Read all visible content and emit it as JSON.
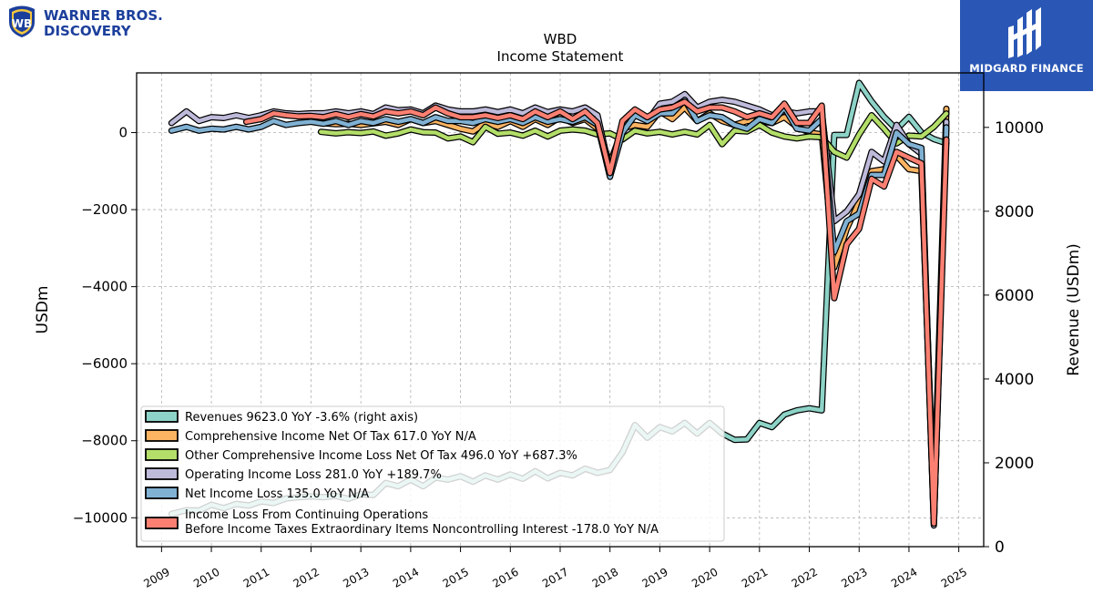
{
  "header": {
    "left_logo": {
      "line1": "WARNER BROS.",
      "line2": "DISCOVERY",
      "icon": "wb-shield-icon",
      "color": "#1c3f9c"
    },
    "right_logo": {
      "text": "MIDGARD FINANCE",
      "icon": "midgard-finance-icon",
      "background": "#2a57b5"
    }
  },
  "chart_data": {
    "type": "line",
    "title": "WBD",
    "subtitle": "Income Statement",
    "ylabel": "USDm",
    "ylabel_right": "Revenue (USDm)",
    "ylim": [
      -10750,
      1550
    ],
    "ylim_right": [
      0,
      11300
    ],
    "xlim": [
      2008.5,
      2025.5
    ],
    "yticks": [
      0,
      -2000,
      -4000,
      -6000,
      -8000,
      -10000
    ],
    "yticks_right": [
      0,
      2000,
      4000,
      6000,
      8000,
      10000
    ],
    "xticks": [
      2009,
      2010,
      2011,
      2012,
      2013,
      2014,
      2015,
      2016,
      2017,
      2018,
      2019,
      2020,
      2021,
      2022,
      2023,
      2024,
      2025
    ],
    "grid": true,
    "legend_position": "lower-left",
    "series": [
      {
        "name": "Revenues  9623.0 YoY -3.6% (right axis)",
        "color": "#8dd3c7",
        "axis": "right",
        "x": [
          2009.2,
          2009.5,
          2009.75,
          2010.0,
          2010.25,
          2010.5,
          2010.75,
          2011.0,
          2011.25,
          2011.5,
          2011.75,
          2012.0,
          2012.25,
          2012.5,
          2012.75,
          2013.0,
          2013.25,
          2013.5,
          2013.75,
          2014.0,
          2014.25,
          2014.5,
          2014.75,
          2015.0,
          2015.25,
          2015.5,
          2015.75,
          2016.0,
          2016.25,
          2016.5,
          2016.75,
          2017.0,
          2017.25,
          2017.5,
          2017.75,
          2018.0,
          2018.25,
          2018.5,
          2018.75,
          2019.0,
          2019.25,
          2019.5,
          2019.75,
          2020.0,
          2020.25,
          2020.5,
          2020.75,
          2021.0,
          2021.25,
          2021.5,
          2021.75,
          2022.0,
          2022.25,
          2022.5,
          2022.75,
          2023.0,
          2023.25,
          2023.5,
          2023.75,
          2024.0,
          2024.25,
          2024.5,
          2024.75
        ],
        "y": [
          780,
          870,
          860,
          1000,
          920,
          1020,
          980,
          1080,
          1040,
          1150,
          1180,
          1200,
          1180,
          1210,
          1140,
          1250,
          1230,
          1520,
          1440,
          1600,
          1440,
          1650,
          1600,
          1680,
          1550,
          1700,
          1600,
          1720,
          1620,
          1800,
          1630,
          1760,
          1700,
          1860,
          1760,
          1830,
          2250,
          2900,
          2600,
          2850,
          2750,
          2950,
          2700,
          2950,
          2700,
          2550,
          2560,
          2950,
          2850,
          3150,
          3250,
          3300,
          3250,
          9820,
          9820,
          11060,
          10620,
          10250,
          9950,
          10250,
          9880,
          9720,
          9623
        ]
      },
      {
        "name": "Comprehensive Income Net Of Tax  617.0 YoY N/A",
        "color": "#fdb462",
        "axis": "left",
        "x": [
          2012.2,
          2012.5,
          2012.75,
          2013.0,
          2013.25,
          2013.5,
          2013.75,
          2014.0,
          2014.25,
          2014.5,
          2014.75,
          2015.0,
          2015.25,
          2015.5,
          2015.75,
          2016.0,
          2016.25,
          2016.5,
          2016.75,
          2017.0,
          2017.25,
          2017.5,
          2017.75,
          2018.0,
          2018.25,
          2018.5,
          2018.75,
          2019.0,
          2019.25,
          2019.5,
          2019.75,
          2020.0,
          2020.25,
          2020.5,
          2020.75,
          2021.0,
          2021.25,
          2021.5,
          2021.75,
          2022.0,
          2022.25,
          2022.5,
          2022.75,
          2023.0,
          2023.25,
          2023.5,
          2023.75,
          2024.0,
          2024.25,
          2024.5,
          2024.75
        ],
        "y": [
          250,
          220,
          230,
          200,
          240,
          280,
          200,
          350,
          250,
          300,
          200,
          100,
          30,
          250,
          150,
          300,
          150,
          350,
          200,
          400,
          250,
          350,
          100,
          -800,
          100,
          200,
          150,
          550,
          350,
          650,
          300,
          500,
          300,
          200,
          300,
          300,
          250,
          400,
          150,
          0,
          -50,
          -3500,
          -2500,
          -1800,
          -1000,
          -950,
          -600,
          -950,
          -1000,
          -9700,
          617
        ]
      },
      {
        "name": "Other Comprehensive Income Loss Net Of Tax  496.0 YoY +687.3%",
        "color": "#b3de69",
        "axis": "left",
        "x": [
          2012.2,
          2012.5,
          2012.75,
          2013.0,
          2013.25,
          2013.5,
          2013.75,
          2014.0,
          2014.25,
          2014.5,
          2014.75,
          2015.0,
          2015.25,
          2015.5,
          2015.75,
          2016.0,
          2016.25,
          2016.5,
          2016.75,
          2017.0,
          2017.25,
          2017.5,
          2017.75,
          2018.0,
          2018.25,
          2018.5,
          2018.75,
          2019.0,
          2019.25,
          2019.5,
          2019.75,
          2020.0,
          2020.25,
          2020.5,
          2020.75,
          2021.0,
          2021.25,
          2021.5,
          2021.75,
          2022.0,
          2022.25,
          2022.5,
          2022.75,
          2023.0,
          2023.25,
          2023.5,
          2023.75,
          2024.0,
          2024.25,
          2024.5,
          2024.75
        ],
        "y": [
          20,
          -20,
          10,
          -10,
          30,
          -80,
          -20,
          80,
          10,
          0,
          -150,
          -100,
          -250,
          150,
          -30,
          0,
          -80,
          50,
          -100,
          50,
          80,
          50,
          -50,
          -20,
          -180,
          50,
          -20,
          20,
          -50,
          20,
          -50,
          200,
          -300,
          50,
          30,
          200,
          0,
          -100,
          -150,
          -100,
          -120,
          -500,
          -650,
          -50,
          450,
          100,
          -280,
          -80,
          -100,
          150,
          496
        ]
      },
      {
        "name": "Operating Income Loss  281.0 YoY +189.7%",
        "color": "#bebada",
        "axis": "left",
        "x": [
          2009.2,
          2009.5,
          2009.75,
          2010.0,
          2010.25,
          2010.5,
          2010.75,
          2011.0,
          2011.25,
          2011.5,
          2011.75,
          2012.0,
          2012.25,
          2012.5,
          2012.75,
          2013.0,
          2013.25,
          2013.5,
          2013.75,
          2014.0,
          2014.25,
          2014.5,
          2014.75,
          2015.0,
          2015.25,
          2015.5,
          2015.75,
          2016.0,
          2016.25,
          2016.5,
          2016.75,
          2017.0,
          2017.25,
          2017.5,
          2017.75,
          2018.0,
          2018.25,
          2018.5,
          2018.75,
          2019.0,
          2019.25,
          2019.5,
          2019.75,
          2020.0,
          2020.25,
          2020.5,
          2020.75,
          2021.0,
          2021.25,
          2021.5,
          2021.75,
          2022.0,
          2022.25,
          2022.5,
          2022.75,
          2023.0,
          2023.25,
          2023.5,
          2023.75,
          2024.0,
          2024.25,
          2024.5,
          2024.75
        ],
        "y": [
          250,
          550,
          300,
          400,
          380,
          450,
          380,
          450,
          550,
          500,
          480,
          500,
          500,
          550,
          500,
          550,
          480,
          650,
          580,
          600,
          500,
          700,
          600,
          550,
          550,
          600,
          530,
          600,
          500,
          650,
          530,
          600,
          550,
          650,
          450,
          -1000,
          100,
          500,
          300,
          750,
          800,
          1000,
          650,
          800,
          850,
          800,
          700,
          600,
          450,
          550,
          500,
          550,
          550,
          -2300,
          -2050,
          -1600,
          -500,
          -750,
          200,
          -300,
          -550,
          -10200,
          281
        ]
      },
      {
        "name": "Net Income Loss  135.0 YoY N/A",
        "color": "#80b1d3",
        "axis": "left",
        "x": [
          2009.2,
          2009.5,
          2009.75,
          2010.0,
          2010.25,
          2010.5,
          2010.75,
          2011.0,
          2011.25,
          2011.5,
          2011.75,
          2012.0,
          2012.25,
          2012.5,
          2012.75,
          2013.0,
          2013.25,
          2013.5,
          2013.75,
          2014.0,
          2014.25,
          2014.5,
          2014.75,
          2015.0,
          2015.25,
          2015.5,
          2015.75,
          2016.0,
          2016.25,
          2016.5,
          2016.75,
          2017.0,
          2017.25,
          2017.5,
          2017.75,
          2018.0,
          2018.25,
          2018.5,
          2018.75,
          2019.0,
          2019.25,
          2019.5,
          2019.75,
          2020.0,
          2020.25,
          2020.5,
          2020.75,
          2021.0,
          2021.25,
          2021.5,
          2021.75,
          2022.0,
          2022.25,
          2022.5,
          2022.75,
          2023.0,
          2023.25,
          2023.5,
          2023.75,
          2024.0,
          2024.25,
          2024.5,
          2024.75
        ],
        "y": [
          50,
          150,
          50,
          100,
          80,
          150,
          80,
          150,
          300,
          200,
          250,
          280,
          230,
          300,
          200,
          300,
          250,
          350,
          280,
          350,
          250,
          400,
          300,
          300,
          250,
          350,
          280,
          350,
          250,
          400,
          280,
          350,
          280,
          400,
          200,
          -1150,
          0,
          450,
          300,
          500,
          500,
          850,
          300,
          450,
          400,
          200,
          100,
          350,
          250,
          650,
          100,
          50,
          350,
          -3100,
          -2300,
          -2100,
          -1100,
          -1100,
          0,
          -300,
          -400,
          -10100,
          135
        ]
      },
      {
        "name": "Income Loss From Continuing Operations Before Income Taxes Extraordinary Items Noncontrolling Interest  -178.0 YoY N/A",
        "color": "#fb8072",
        "axis": "left",
        "x": [
          2010.7,
          2011.0,
          2011.25,
          2011.5,
          2011.75,
          2012.0,
          2012.25,
          2012.5,
          2012.75,
          2013.0,
          2013.25,
          2013.5,
          2013.75,
          2014.0,
          2014.25,
          2014.5,
          2014.75,
          2015.0,
          2015.25,
          2015.5,
          2015.75,
          2016.0,
          2016.25,
          2016.5,
          2016.75,
          2017.0,
          2017.25,
          2017.5,
          2017.75,
          2018.0,
          2018.25,
          2018.5,
          2018.75,
          2019.0,
          2019.25,
          2019.5,
          2019.75,
          2020.0,
          2020.25,
          2020.5,
          2020.75,
          2021.0,
          2021.25,
          2021.5,
          2021.75,
          2022.0,
          2022.25,
          2022.5,
          2022.75,
          2023.0,
          2023.25,
          2023.5,
          2023.75,
          2024.0,
          2024.25,
          2024.5,
          2024.75
        ],
        "y": [
          280,
          350,
          500,
          450,
          420,
          430,
          400,
          480,
          400,
          480,
          420,
          550,
          500,
          550,
          450,
          650,
          500,
          400,
          400,
          450,
          380,
          450,
          350,
          550,
          400,
          550,
          350,
          550,
          250,
          -1050,
          300,
          600,
          400,
          600,
          650,
          800,
          550,
          650,
          650,
          550,
          400,
          500,
          400,
          750,
          250,
          250,
          700,
          -4300,
          -2900,
          -2500,
          -1200,
          -1400,
          -500,
          -650,
          -800,
          -10150,
          -178
        ]
      }
    ]
  }
}
